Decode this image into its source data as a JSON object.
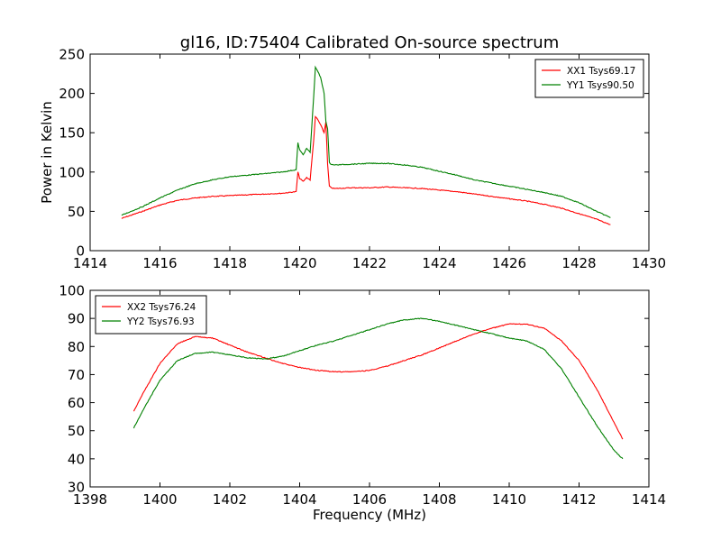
{
  "figure": {
    "title": "gl16, ID:75404 Calibrated On-source spectrum"
  },
  "colors": {
    "red": "#ff0000",
    "green": "#008000",
    "axis": "#000000",
    "background": "#ffffff"
  },
  "chart_data": [
    {
      "type": "line",
      "title": "gl16, ID:75404 Calibrated On-source spectrum",
      "xlabel": "",
      "ylabel": "Power in Kelvin",
      "xlim": [
        1414,
        1430
      ],
      "ylim": [
        0,
        250
      ],
      "xticks": [
        "1414",
        "1416",
        "1418",
        "1420",
        "1422",
        "1424",
        "1426",
        "1428",
        "1430"
      ],
      "yticks": [
        "0",
        "50",
        "100",
        "150",
        "200",
        "250"
      ],
      "grid": false,
      "legend": "top-right",
      "series": [
        {
          "name": "XX1 Tsys69.17",
          "color": "#ff0000",
          "x": [
            1414.9,
            1415.5,
            1416.0,
            1416.5,
            1417.0,
            1417.5,
            1418.0,
            1418.5,
            1419.0,
            1419.5,
            1419.9,
            1419.95,
            1420.0,
            1420.1,
            1420.2,
            1420.3,
            1420.4,
            1420.45,
            1420.5,
            1420.6,
            1420.7,
            1420.75,
            1420.8,
            1420.85,
            1420.9,
            1421.0,
            1421.5,
            1422.0,
            1422.5,
            1423.0,
            1423.5,
            1424.0,
            1424.5,
            1425.0,
            1425.5,
            1426.0,
            1426.5,
            1427.0,
            1427.5,
            1428.0,
            1428.5,
            1428.9
          ],
          "values": [
            41,
            50,
            58,
            64,
            67,
            69,
            70,
            71,
            72,
            73,
            75,
            100,
            92,
            88,
            93,
            90,
            140,
            170,
            168,
            160,
            150,
            164,
            110,
            82,
            80,
            79,
            80,
            80,
            81,
            80,
            79,
            77,
            75,
            72,
            69,
            66,
            63,
            59,
            54,
            47,
            40,
            33
          ]
        },
        {
          "name": "YY1 Tsys90.50",
          "color": "#008000",
          "x": [
            1414.9,
            1415.5,
            1416.0,
            1416.5,
            1417.0,
            1417.5,
            1418.0,
            1418.5,
            1419.0,
            1419.5,
            1419.9,
            1419.95,
            1420.0,
            1420.1,
            1420.2,
            1420.3,
            1420.4,
            1420.45,
            1420.5,
            1420.6,
            1420.7,
            1420.75,
            1420.8,
            1420.85,
            1420.9,
            1421.0,
            1421.5,
            1422.0,
            1422.5,
            1423.0,
            1423.5,
            1424.0,
            1424.5,
            1425.0,
            1425.5,
            1426.0,
            1426.5,
            1427.0,
            1427.5,
            1428.0,
            1428.5,
            1428.9
          ],
          "values": [
            45,
            56,
            67,
            77,
            85,
            90,
            94,
            96,
            98,
            100,
            103,
            137,
            128,
            122,
            130,
            125,
            195,
            233,
            230,
            220,
            200,
            165,
            155,
            112,
            110,
            109,
            110,
            111,
            111,
            109,
            106,
            101,
            96,
            90,
            86,
            82,
            78,
            74,
            69,
            61,
            50,
            42
          ]
        }
      ]
    },
    {
      "type": "line",
      "title": "",
      "xlabel": "Frequency (MHz)",
      "ylabel": "",
      "xlim": [
        1398,
        1414
      ],
      "ylim": [
        30,
        100
      ],
      "xticks": [
        "1398",
        "1400",
        "1402",
        "1404",
        "1406",
        "1408",
        "1410",
        "1412",
        "1414"
      ],
      "yticks": [
        "30",
        "40",
        "50",
        "60",
        "70",
        "80",
        "90",
        "100"
      ],
      "grid": false,
      "legend": "top-left",
      "series": [
        {
          "name": "XX2 Tsys76.24",
          "color": "#ff0000",
          "x": [
            1399.25,
            1399.5,
            1400.0,
            1400.5,
            1401.0,
            1401.5,
            1402.0,
            1402.5,
            1403.0,
            1403.5,
            1404.0,
            1404.5,
            1405.0,
            1405.5,
            1406.0,
            1406.5,
            1407.0,
            1407.5,
            1408.0,
            1408.5,
            1409.0,
            1409.5,
            1410.0,
            1410.5,
            1411.0,
            1411.5,
            1412.0,
            1412.5,
            1413.0,
            1413.25
          ],
          "values": [
            57,
            63,
            74,
            81,
            83.5,
            83,
            80.5,
            78,
            76,
            74,
            72.5,
            71.5,
            71,
            71,
            71.5,
            73,
            75,
            77,
            79.5,
            82,
            84.5,
            86.5,
            88,
            88,
            86.5,
            82,
            75,
            65,
            53,
            47
          ]
        },
        {
          "name": "YY2 Tsys76.93",
          "color": "#008000",
          "x": [
            1399.25,
            1399.5,
            1400.0,
            1400.5,
            1401.0,
            1401.5,
            1402.0,
            1402.5,
            1403.0,
            1403.5,
            1404.0,
            1404.5,
            1405.0,
            1405.5,
            1406.0,
            1406.5,
            1407.0,
            1407.5,
            1408.0,
            1408.5,
            1409.0,
            1409.5,
            1410.0,
            1410.5,
            1411.0,
            1411.5,
            1412.0,
            1412.5,
            1413.0,
            1413.25
          ],
          "values": [
            51,
            57,
            68,
            75,
            77.5,
            78,
            77,
            76,
            75.5,
            76.5,
            78.5,
            80.5,
            82,
            84,
            86,
            88,
            89.5,
            90,
            89,
            87.5,
            86,
            84.5,
            83,
            82,
            79,
            72,
            62,
            52,
            43,
            40
          ]
        }
      ]
    }
  ]
}
